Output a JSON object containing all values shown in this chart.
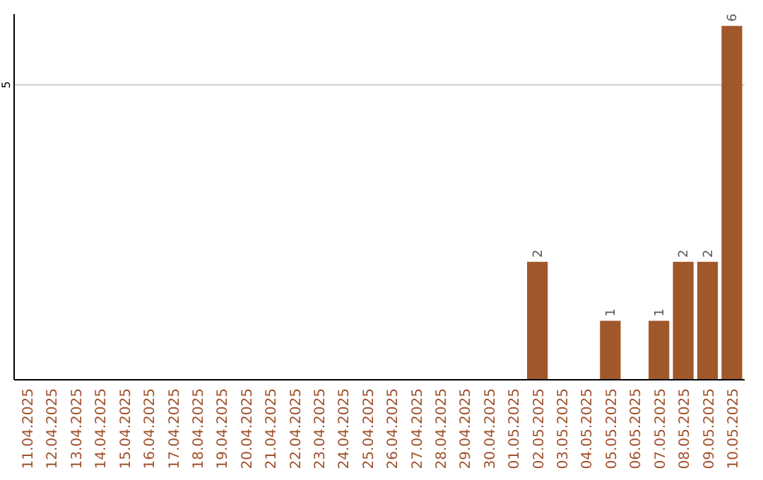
{
  "chart_data": {
    "type": "bar",
    "categories": [
      "11.04.2025",
      "12.04.2025",
      "13.04.2025",
      "14.04.2025",
      "15.04.2025",
      "16.04.2025",
      "17.04.2025",
      "18.04.2025",
      "19.04.2025",
      "20.04.2025",
      "21.04.2025",
      "22.04.2025",
      "23.04.2025",
      "24.04.2025",
      "25.04.2025",
      "26.04.2025",
      "27.04.2025",
      "28.04.2025",
      "29.04.2025",
      "30.04.2025",
      "01.05.2025",
      "02.05.2025",
      "03.05.2025",
      "04.05.2025",
      "05.05.2025",
      "06.05.2025",
      "07.05.2025",
      "08.05.2025",
      "09.05.2025",
      "10.05.2025"
    ],
    "values": [
      null,
      null,
      null,
      null,
      null,
      null,
      null,
      null,
      null,
      null,
      null,
      null,
      null,
      null,
      null,
      null,
      null,
      null,
      null,
      null,
      null,
      2,
      null,
      null,
      1,
      null,
      1,
      2,
      2,
      6
    ],
    "color": "#a0582a",
    "ylim": [
      0,
      6.2
    ],
    "yticks": [
      5
    ],
    "grid": "y",
    "data_labels": true
  }
}
